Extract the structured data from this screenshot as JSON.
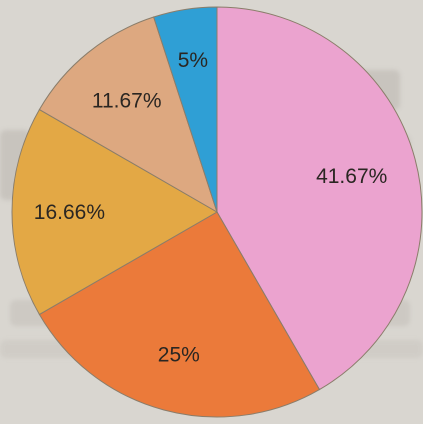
{
  "chart_data": {
    "type": "pie",
    "start": "top, clockwise",
    "slices": [
      {
        "label": "41.67%",
        "value": 41.67,
        "color": "#eba3cf"
      },
      {
        "label": "25%",
        "value": 25,
        "color": "#eb7a3a"
      },
      {
        "label": "16.66%",
        "value": 16.66,
        "color": "#e3a845"
      },
      {
        "label": "11.67%",
        "value": 11.67,
        "color": "#dda880"
      },
      {
        "label": "5%",
        "value": 5,
        "color": "#2f9fd5"
      }
    ],
    "title": "",
    "legend": "none"
  }
}
